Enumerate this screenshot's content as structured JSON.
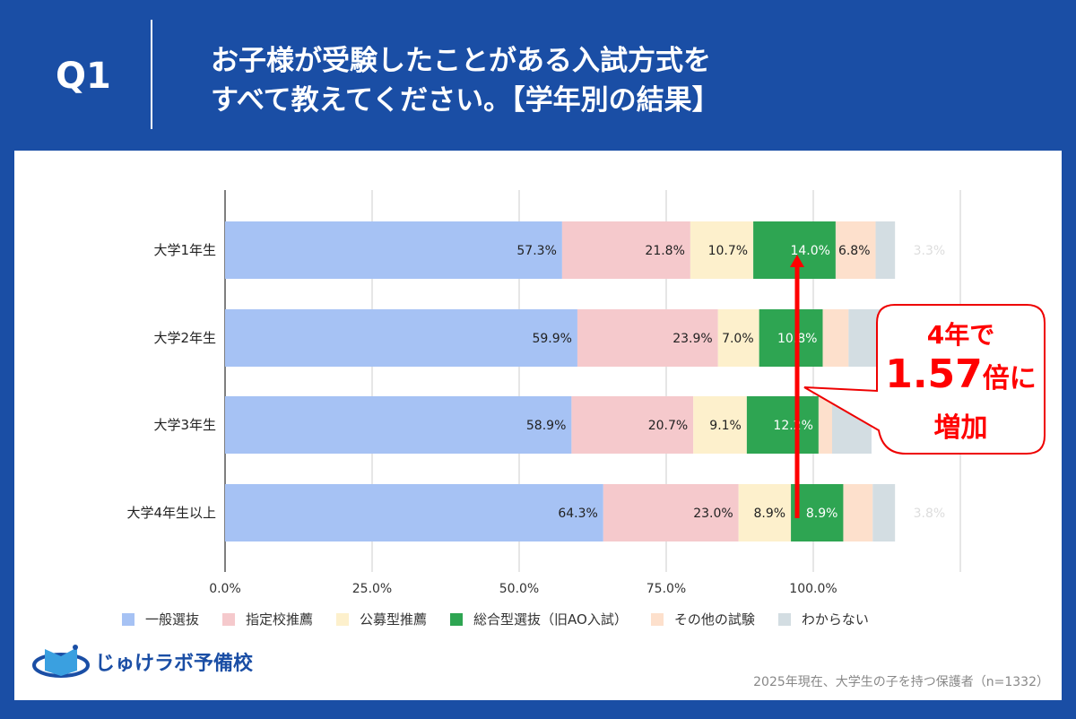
{
  "header": {
    "q": "Q1",
    "title_line1": "お子様が受験したことがある入試方式を",
    "title_line2": "すべて教えてください。【学年別の結果】"
  },
  "colors": {
    "background": "#1a4ea5",
    "accent": "#ff0000"
  },
  "chart_data": {
    "type": "bar",
    "orientation": "horizontal",
    "stacked": true,
    "categories": [
      "大学1年生",
      "大学2年生",
      "大学3年生",
      "大学4年生以上"
    ],
    "xlim": [
      0,
      125
    ],
    "xticks": [
      "0.0%",
      "25.0%",
      "50.0%",
      "75.0%",
      "100.0%"
    ],
    "grid": true,
    "legend_position": "bottom",
    "series": [
      {
        "name": "一般選抜",
        "color": "#a6c2f4",
        "values": [
          57.3,
          59.9,
          58.9,
          64.3
        ],
        "labels": [
          "57.3%",
          "59.9%",
          "58.9%",
          "64.3%"
        ]
      },
      {
        "name": "指定校推薦",
        "color": "#f5c9cc",
        "values": [
          21.8,
          23.9,
          20.7,
          23.0
        ],
        "labels": [
          "21.8%",
          "23.9%",
          "20.7%",
          "23.0%"
        ]
      },
      {
        "name": "公募型推薦",
        "color": "#fdf0cc",
        "values": [
          10.7,
          7.0,
          9.1,
          8.9
        ],
        "labels": [
          "10.7%",
          "7.0%",
          "9.1%",
          "8.9%"
        ]
      },
      {
        "name": "総合型選抜（旧AO入試）",
        "color": "#2ea552",
        "values": [
          14.0,
          10.8,
          12.2,
          8.9
        ],
        "labels": [
          "14.0%",
          "10.8%",
          "12.2%",
          "8.9%"
        ]
      },
      {
        "name": "その他の試験",
        "color": "#fde0cc",
        "values": [
          6.8,
          4.4,
          2.3,
          5.0
        ],
        "labels": [
          "6.8%",
          null,
          null,
          null
        ]
      },
      {
        "name": "わからない",
        "color": "#d3dde2",
        "values": [
          3.3,
          7.5,
          6.7,
          3.8
        ],
        "labels": [
          "3.3%",
          null,
          null,
          "3.8%"
        ]
      }
    ],
    "annotation": {
      "line1": "4年で",
      "num": "1.57",
      "unit": "倍に",
      "line3": "増加"
    }
  },
  "logo": {
    "text": "じゅけラボ予備校"
  },
  "footnote": "2025年現在、大学生の子を持つ保護者（n=1332）"
}
